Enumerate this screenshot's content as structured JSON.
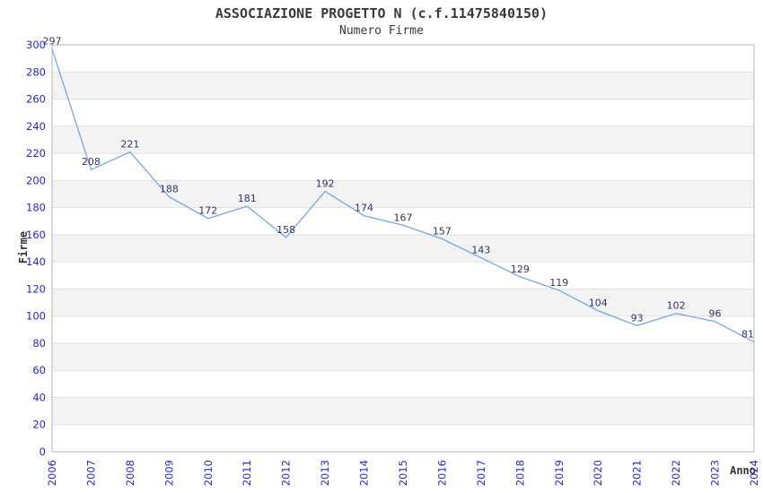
{
  "colors": {
    "background": "#ffffff",
    "line": "#74a7e0",
    "tick_label": "#2626cb",
    "data_label": "#333366",
    "band": "#f3f3f3",
    "gridline": "#e2e2e2",
    "axis_border": "#b3b3b3",
    "title_text": "#3a3a3a"
  },
  "chart_data": {
    "type": "line",
    "title": "ASSOCIAZIONE PROGETTO N (c.f.11475840150)",
    "subtitle": "Numero Firme",
    "xlabel": "Anno",
    "ylabel": "Firme",
    "categories": [
      "2006",
      "2007",
      "2008",
      "2009",
      "2010",
      "2011",
      "2012",
      "2013",
      "2014",
      "2015",
      "2016",
      "2017",
      "2018",
      "2019",
      "2020",
      "2021",
      "2022",
      "2023",
      "2024"
    ],
    "series": [
      {
        "name": "Numero Firme",
        "values": [
          297,
          208,
          221,
          188,
          172,
          181,
          158,
          192,
          174,
          167,
          157,
          143,
          129,
          119,
          104,
          93,
          102,
          96,
          81
        ]
      }
    ],
    "ylim": [
      0,
      300
    ],
    "ytick_step": 20,
    "yticks": [
      0,
      20,
      40,
      60,
      80,
      100,
      120,
      140,
      160,
      180,
      200,
      220,
      240,
      260,
      280,
      300
    ],
    "grid": true,
    "banded_background": true,
    "legend": "none",
    "data_labels": true
  }
}
